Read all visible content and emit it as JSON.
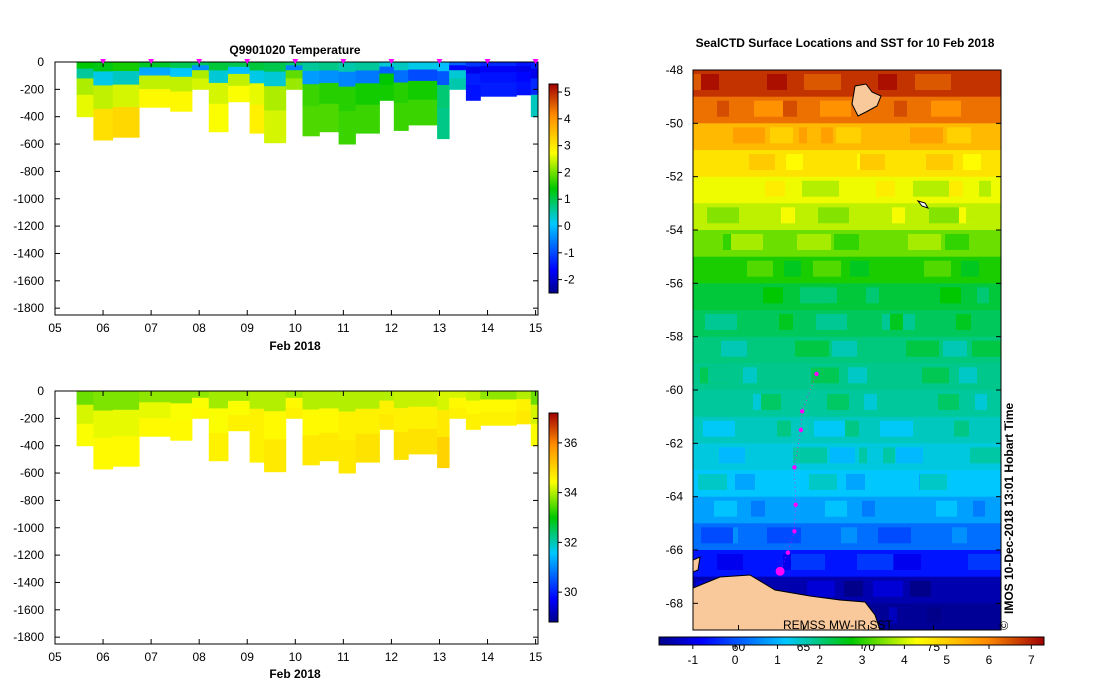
{
  "chart_data": [
    {
      "type": "heatmap",
      "title": "Q9901020  Temperature",
      "xlabel": "Feb 2018",
      "ylabel": "",
      "x_ticks": [
        "05",
        "06",
        "07",
        "08",
        "09",
        "10",
        "11",
        "12",
        "13",
        "14",
        "15"
      ],
      "x_range": [
        5,
        15.05
      ],
      "y_ticks": [
        "0",
        "-200",
        "-400",
        "-600",
        "-800",
        "-1000",
        "-1200",
        "-1400",
        "-1600",
        "-1800"
      ],
      "y_range": [
        -1850,
        0
      ],
      "colorbar": {
        "ticks": [
          "-2",
          "-1",
          "0",
          "1",
          "2",
          "3",
          "4",
          "5"
        ],
        "range": [
          -2.5,
          5.3
        ]
      },
      "profile_marker_days": [
        6.0,
        7.0,
        8.0,
        9.0,
        10.0,
        11.0,
        12.0,
        13.0,
        14.0,
        15.0
      ],
      "profiles": [
        {
          "start": 5.45,
          "end": 5.8,
          "max_depth": -400,
          "values": [
            1.4,
            0.6,
            2.3,
            2.6
          ]
        },
        {
          "start": 5.8,
          "end": 6.2,
          "max_depth": -570,
          "values": [
            1.3,
            0.2,
            2.4,
            3.1
          ]
        },
        {
          "start": 6.2,
          "end": 6.75,
          "max_depth": -550,
          "values": [
            1.5,
            0.4,
            2.5,
            3.2
          ]
        },
        {
          "start": 6.75,
          "end": 7.4,
          "max_depth": -330,
          "values": [
            1.2,
            -0.2,
            2.4,
            2.8
          ]
        },
        {
          "start": 7.4,
          "end": 7.85,
          "max_depth": -360,
          "values": [
            1.0,
            0.1,
            2.4,
            2.8
          ]
        },
        {
          "start": 7.85,
          "end": 8.2,
          "max_depth": -200,
          "values": [
            0.9,
            -0.4,
            2.3,
            2.5
          ]
        },
        {
          "start": 8.2,
          "end": 8.6,
          "max_depth": -510,
          "values": [
            1.1,
            0.3,
            2.5,
            2.7
          ]
        },
        {
          "start": 8.6,
          "end": 9.05,
          "max_depth": -290,
          "values": [
            1.0,
            0.0,
            2.4,
            2.7
          ]
        },
        {
          "start": 9.05,
          "end": 9.35,
          "max_depth": -520,
          "values": [
            1.1,
            0.2,
            2.6,
            2.9
          ]
        },
        {
          "start": 9.35,
          "end": 9.8,
          "max_depth": -590,
          "values": [
            1.0,
            0.3,
            2.3,
            2.5
          ]
        },
        {
          "start": 9.8,
          "end": 10.15,
          "max_depth": -200,
          "values": [
            0.8,
            -0.5,
            1.9,
            2.2
          ]
        },
        {
          "start": 10.15,
          "end": 10.5,
          "max_depth": -540,
          "values": [
            0.6,
            -0.3,
            1.7,
            1.8
          ]
        },
        {
          "start": 10.5,
          "end": 10.9,
          "max_depth": -510,
          "values": [
            0.7,
            -0.4,
            1.6,
            1.8
          ]
        },
        {
          "start": 10.9,
          "end": 11.25,
          "max_depth": -600,
          "values": [
            0.5,
            -0.5,
            1.6,
            1.7
          ]
        },
        {
          "start": 11.25,
          "end": 11.75,
          "max_depth": -520,
          "values": [
            0.6,
            -0.6,
            1.5,
            1.7
          ]
        },
        {
          "start": 11.75,
          "end": 12.05,
          "max_depth": -280,
          "values": [
            0.3,
            -0.8,
            1.4,
            1.5
          ]
        },
        {
          "start": 12.05,
          "end": 12.35,
          "max_depth": -500,
          "values": [
            0.4,
            -0.7,
            1.6,
            1.7
          ]
        },
        {
          "start": 12.35,
          "end": 12.95,
          "max_depth": -460,
          "values": [
            0.2,
            -1.0,
            1.5,
            1.7
          ]
        },
        {
          "start": 12.95,
          "end": 13.2,
          "max_depth": -560,
          "values": [
            0.0,
            -0.9,
            0.8,
            0.7
          ]
        },
        {
          "start": 13.2,
          "end": 13.55,
          "max_depth": -200,
          "values": [
            -0.8,
            -1.6,
            0.3,
            0.5
          ]
        },
        {
          "start": 13.55,
          "end": 13.85,
          "max_depth": -280,
          "values": [
            -1.2,
            -1.8,
            -1.4,
            -1.5
          ]
        },
        {
          "start": 13.85,
          "end": 14.6,
          "max_depth": -250,
          "values": [
            -1.3,
            -1.7,
            -1.5,
            -1.4
          ]
        },
        {
          "start": 14.6,
          "end": 14.9,
          "max_depth": -240,
          "values": [
            -1.5,
            -1.8,
            -1.6,
            -1.5
          ]
        },
        {
          "start": 14.9,
          "end": 15.05,
          "max_depth": -400,
          "values": [
            -1.4,
            -1.8,
            -1.3,
            0.4
          ]
        }
      ]
    },
    {
      "type": "heatmap",
      "title": "",
      "xlabel": "Feb 2018",
      "ylabel": "",
      "x_ticks": [
        "05",
        "06",
        "07",
        "08",
        "09",
        "10",
        "11",
        "12",
        "13",
        "14",
        "15"
      ],
      "x_range": [
        5,
        15.05
      ],
      "y_ticks": [
        "0",
        "-200",
        "-400",
        "-600",
        "-800",
        "-1000",
        "-1200",
        "-1400",
        "-1600",
        "-1800"
      ],
      "y_range": [
        -1850,
        0
      ],
      "colorbar": {
        "ticks": [
          "30",
          "32",
          "34",
          "36"
        ],
        "range": [
          28.8,
          37.2
        ]
      },
      "profiles": [
        {
          "start": 5.45,
          "end": 5.8,
          "max_depth": -400,
          "values": [
            33.6,
            34.2,
            34.4
          ]
        },
        {
          "start": 5.8,
          "end": 6.2,
          "max_depth": -570,
          "values": [
            33.7,
            34.3,
            34.5
          ]
        },
        {
          "start": 6.2,
          "end": 6.75,
          "max_depth": -550,
          "values": [
            33.7,
            34.3,
            34.5
          ]
        },
        {
          "start": 6.75,
          "end": 7.4,
          "max_depth": -330,
          "values": [
            33.8,
            34.3,
            34.5
          ]
        },
        {
          "start": 7.4,
          "end": 7.85,
          "max_depth": -360,
          "values": [
            33.8,
            34.4,
            34.5
          ]
        },
        {
          "start": 7.85,
          "end": 8.2,
          "max_depth": -200,
          "values": [
            33.8,
            34.4,
            34.5
          ]
        },
        {
          "start": 8.2,
          "end": 8.6,
          "max_depth": -510,
          "values": [
            33.9,
            34.4,
            34.6
          ]
        },
        {
          "start": 8.6,
          "end": 9.05,
          "max_depth": -290,
          "values": [
            33.9,
            34.4,
            34.6
          ]
        },
        {
          "start": 9.05,
          "end": 9.35,
          "max_depth": -520,
          "values": [
            34.0,
            34.6,
            34.6
          ]
        },
        {
          "start": 9.35,
          "end": 9.8,
          "max_depth": -590,
          "values": [
            34.0,
            34.5,
            34.7
          ]
        },
        {
          "start": 9.8,
          "end": 10.15,
          "max_depth": -200,
          "values": [
            33.9,
            34.5,
            34.6
          ]
        },
        {
          "start": 10.15,
          "end": 10.5,
          "max_depth": -540,
          "values": [
            34.0,
            34.5,
            34.7
          ]
        },
        {
          "start": 10.5,
          "end": 10.9,
          "max_depth": -510,
          "values": [
            34.0,
            34.5,
            34.7
          ]
        },
        {
          "start": 10.9,
          "end": 11.25,
          "max_depth": -600,
          "values": [
            34.0,
            34.6,
            34.7
          ]
        },
        {
          "start": 11.25,
          "end": 11.75,
          "max_depth": -520,
          "values": [
            34.0,
            34.6,
            34.8
          ]
        },
        {
          "start": 11.75,
          "end": 12.05,
          "max_depth": -280,
          "values": [
            34.0,
            34.6,
            34.7
          ]
        },
        {
          "start": 12.05,
          "end": 12.35,
          "max_depth": -500,
          "values": [
            34.1,
            34.6,
            34.8
          ]
        },
        {
          "start": 12.35,
          "end": 12.95,
          "max_depth": -460,
          "values": [
            34.1,
            34.6,
            34.8
          ]
        },
        {
          "start": 12.95,
          "end": 13.2,
          "max_depth": -560,
          "values": [
            34.2,
            34.7,
            35.0
          ]
        },
        {
          "start": 13.2,
          "end": 13.55,
          "max_depth": -200,
          "values": [
            34.2,
            34.5,
            34.6
          ]
        },
        {
          "start": 13.55,
          "end": 13.85,
          "max_depth": -280,
          "values": [
            34.1,
            34.5,
            34.6
          ]
        },
        {
          "start": 13.85,
          "end": 14.6,
          "max_depth": -250,
          "values": [
            33.8,
            34.5,
            34.6
          ]
        },
        {
          "start": 14.6,
          "end": 14.9,
          "max_depth": -240,
          "values": [
            34.0,
            34.6,
            34.7
          ]
        },
        {
          "start": 14.9,
          "end": 15.05,
          "max_depth": -400,
          "values": [
            33.6,
            34.2,
            34.4
          ]
        }
      ]
    },
    {
      "type": "heatmap",
      "title": "SealCTD Surface Locations and SST for 10 Feb 2018",
      "xlabel": "",
      "ylabel": "",
      "y_ticks": [
        "-48",
        "-50",
        "-52",
        "-54",
        "-56",
        "-58",
        "-60",
        "-62",
        "-64",
        "-66",
        "-68"
      ],
      "lat_range": [
        -69,
        -48
      ],
      "x_ticks": [
        "60",
        "65",
        "70",
        "75"
      ],
      "lon_range": [
        56.5,
        80.2
      ],
      "colorbar": {
        "ticks": [
          "-1",
          "0",
          "1",
          "2",
          "3",
          "4",
          "5",
          "6",
          "7"
        ],
        "range": [
          -1.8,
          7.3
        ]
      },
      "source_label": "REMSS MW-IR SST",
      "side_label": "IMOS 10-Dec-2018 13:01 Hobart Time",
      "copyright": "©",
      "sst_bands": [
        {
          "lat": -48.5,
          "sst": 6.8
        },
        {
          "lat": -49.5,
          "sst": 6.2
        },
        {
          "lat": -50.5,
          "sst": 5.3
        },
        {
          "lat": -51.5,
          "sst": 4.7
        },
        {
          "lat": -52.5,
          "sst": 4.2
        },
        {
          "lat": -53.5,
          "sst": 3.9
        },
        {
          "lat": -54.5,
          "sst": 3.4
        },
        {
          "lat": -55.5,
          "sst": 2.9
        },
        {
          "lat": -56.5,
          "sst": 2.4
        },
        {
          "lat": -57.5,
          "sst": 2.2
        },
        {
          "lat": -58.5,
          "sst": 2.0
        },
        {
          "lat": -59.5,
          "sst": 1.9
        },
        {
          "lat": -60.5,
          "sst": 1.8
        },
        {
          "lat": -61.5,
          "sst": 1.6
        },
        {
          "lat": -62.5,
          "sst": 1.4
        },
        {
          "lat": -63.5,
          "sst": 1.2
        },
        {
          "lat": -64.5,
          "sst": 0.8
        },
        {
          "lat": -65.5,
          "sst": 0.3
        },
        {
          "lat": -66.5,
          "sst": -0.6
        },
        {
          "lat": -67.5,
          "sst": -1.5
        },
        {
          "lat": -68.5,
          "sst": -1.7
        }
      ],
      "seal_locations": [
        {
          "lon": 66.0,
          "lat": -59.4
        },
        {
          "lon": 64.9,
          "lat": -60.8
        },
        {
          "lon": 64.8,
          "lat": -61.5
        },
        {
          "lon": 64.3,
          "lat": -62.9
        },
        {
          "lon": 64.4,
          "lat": -64.3
        },
        {
          "lon": 64.3,
          "lat": -65.3
        },
        {
          "lon": 63.8,
          "lat": -66.1
        },
        {
          "lon": 63.2,
          "lat": -66.8
        }
      ]
    }
  ]
}
